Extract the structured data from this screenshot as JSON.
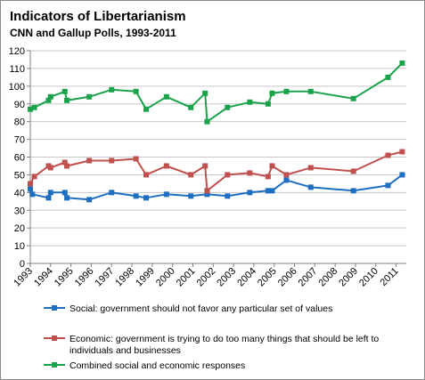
{
  "title": "Indicators of Libertarianism",
  "subtitle": "CNN and Gallup Polls, 1993-2011",
  "chart_data": {
    "type": "line",
    "title": "Indicators of Libertarianism",
    "subtitle": "CNN and Gallup Polls, 1993-2011",
    "xlabel": "",
    "ylabel": "",
    "xlim": [
      1993,
      2011.5
    ],
    "ylim": [
      0,
      120
    ],
    "x_ticks": [
      1993,
      1994,
      1995,
      1996,
      1997,
      1998,
      1999,
      2000,
      2001,
      2002,
      2003,
      2004,
      2005,
      2006,
      2007,
      2008,
      2009,
      2010,
      2011
    ],
    "y_ticks": [
      0,
      10,
      20,
      30,
      40,
      50,
      60,
      70,
      80,
      90,
      100,
      110,
      120
    ],
    "grid": "horizontal",
    "legend_position": "bottom",
    "series": [
      {
        "name": "Social: government should not favor any particular set of values",
        "color": "#1f6fc0",
        "points": [
          [
            1993.0,
            42
          ],
          [
            1993.1,
            39
          ],
          [
            1993.9,
            37
          ],
          [
            1994.0,
            40
          ],
          [
            1994.7,
            40
          ],
          [
            1994.8,
            37
          ],
          [
            1995.9,
            36
          ],
          [
            1997.0,
            40
          ],
          [
            1998.2,
            38
          ],
          [
            1998.7,
            37
          ],
          [
            1999.7,
            39
          ],
          [
            2000.9,
            38
          ],
          [
            2001.7,
            39
          ],
          [
            2002.7,
            38
          ],
          [
            2003.8,
            40
          ],
          [
            2004.7,
            41
          ],
          [
            2004.9,
            41
          ],
          [
            2005.6,
            47
          ],
          [
            2006.8,
            43
          ],
          [
            2008.9,
            41
          ],
          [
            2010.6,
            44
          ],
          [
            2011.3,
            50
          ]
        ]
      },
      {
        "name": "Economic: government is trying to do too many things that should be left to individuals and businesses",
        "color": "#c0504d",
        "lines": [
          "Economic: government is trying to do too many things that should be left to",
          "individuals and businesses"
        ],
        "points": [
          [
            1993.0,
            45
          ],
          [
            1993.2,
            49
          ],
          [
            1993.9,
            55
          ],
          [
            1994.0,
            54
          ],
          [
            1994.7,
            57
          ],
          [
            1994.8,
            55
          ],
          [
            1995.9,
            58
          ],
          [
            1997.0,
            58
          ],
          [
            1998.2,
            59
          ],
          [
            1998.7,
            50
          ],
          [
            1999.7,
            55
          ],
          [
            2000.9,
            50
          ],
          [
            2001.6,
            55
          ],
          [
            2001.7,
            41
          ],
          [
            2002.7,
            50
          ],
          [
            2003.8,
            51
          ],
          [
            2004.7,
            49
          ],
          [
            2004.9,
            55
          ],
          [
            2005.6,
            50
          ],
          [
            2006.8,
            54
          ],
          [
            2008.9,
            52
          ],
          [
            2010.6,
            61
          ],
          [
            2011.3,
            63
          ]
        ]
      },
      {
        "name": "Combined social and economic responses",
        "color": "#1aa34a",
        "points": [
          [
            1993.0,
            87
          ],
          [
            1993.2,
            88
          ],
          [
            1993.9,
            92
          ],
          [
            1994.0,
            94
          ],
          [
            1994.7,
            97
          ],
          [
            1994.8,
            92
          ],
          [
            1995.9,
            94
          ],
          [
            1997.0,
            98
          ],
          [
            1998.2,
            97
          ],
          [
            1998.7,
            87
          ],
          [
            1999.7,
            94
          ],
          [
            2000.9,
            88
          ],
          [
            2001.6,
            96
          ],
          [
            2001.7,
            80
          ],
          [
            2002.7,
            88
          ],
          [
            2003.8,
            91
          ],
          [
            2004.7,
            90
          ],
          [
            2004.9,
            96
          ],
          [
            2005.6,
            97
          ],
          [
            2006.8,
            97
          ],
          [
            2008.9,
            93
          ],
          [
            2010.6,
            105
          ],
          [
            2011.3,
            113
          ]
        ]
      }
    ]
  }
}
